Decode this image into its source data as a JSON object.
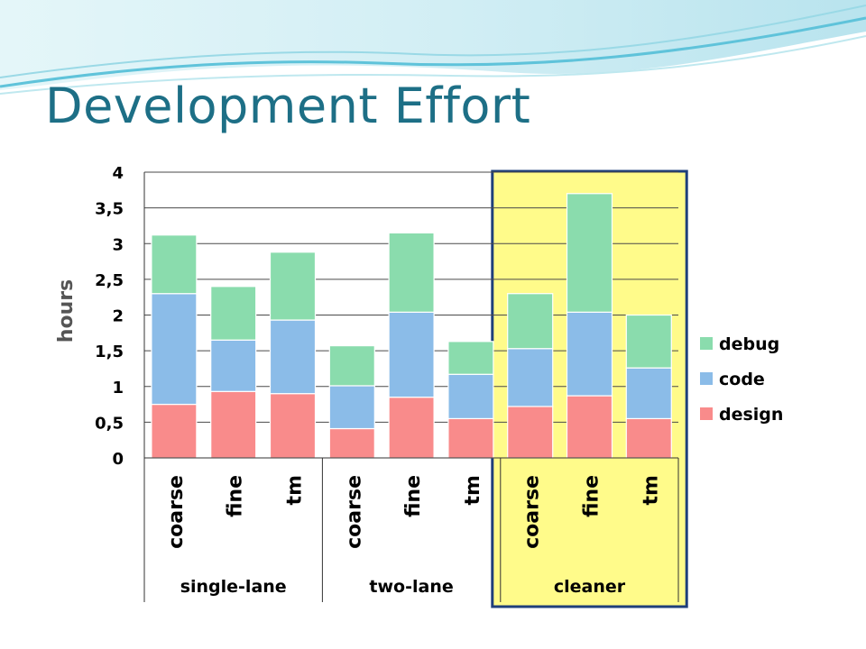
{
  "slide": {
    "title": "Development Effort"
  },
  "chart_data": {
    "type": "bar",
    "stacked": true,
    "ylabel": "hours",
    "ylim": [
      0,
      4
    ],
    "yticks": [
      "0",
      "0,5",
      "1",
      "1,5",
      "2",
      "2,5",
      "3",
      "3,5",
      "4"
    ],
    "grid": true,
    "legend_position": "right",
    "groups": [
      {
        "name": "single-lane",
        "categories": [
          "coarse",
          "fine",
          "tm"
        ]
      },
      {
        "name": "two-lane",
        "categories": [
          "coarse",
          "fine",
          "tm"
        ]
      },
      {
        "name": "cleaner",
        "categories": [
          "coarse",
          "fine",
          "tm"
        ],
        "highlighted": true
      }
    ],
    "series": [
      {
        "name": "design",
        "color": "#f98b8b",
        "values": [
          0.75,
          0.93,
          0.9,
          0.41,
          0.85,
          0.55,
          0.72,
          0.87,
          0.55
        ]
      },
      {
        "name": "code",
        "color": "#8bbce8",
        "values": [
          1.55,
          0.72,
          1.03,
          0.6,
          1.19,
          0.62,
          0.81,
          1.17,
          0.71
        ]
      },
      {
        "name": "debug",
        "color": "#8adcad",
        "values": [
          0.82,
          0.75,
          0.95,
          0.56,
          1.11,
          0.46,
          0.77,
          1.66,
          0.74
        ]
      }
    ],
    "highlight_color": "#fffb8a",
    "highlight_border": "#1f3f7a"
  }
}
